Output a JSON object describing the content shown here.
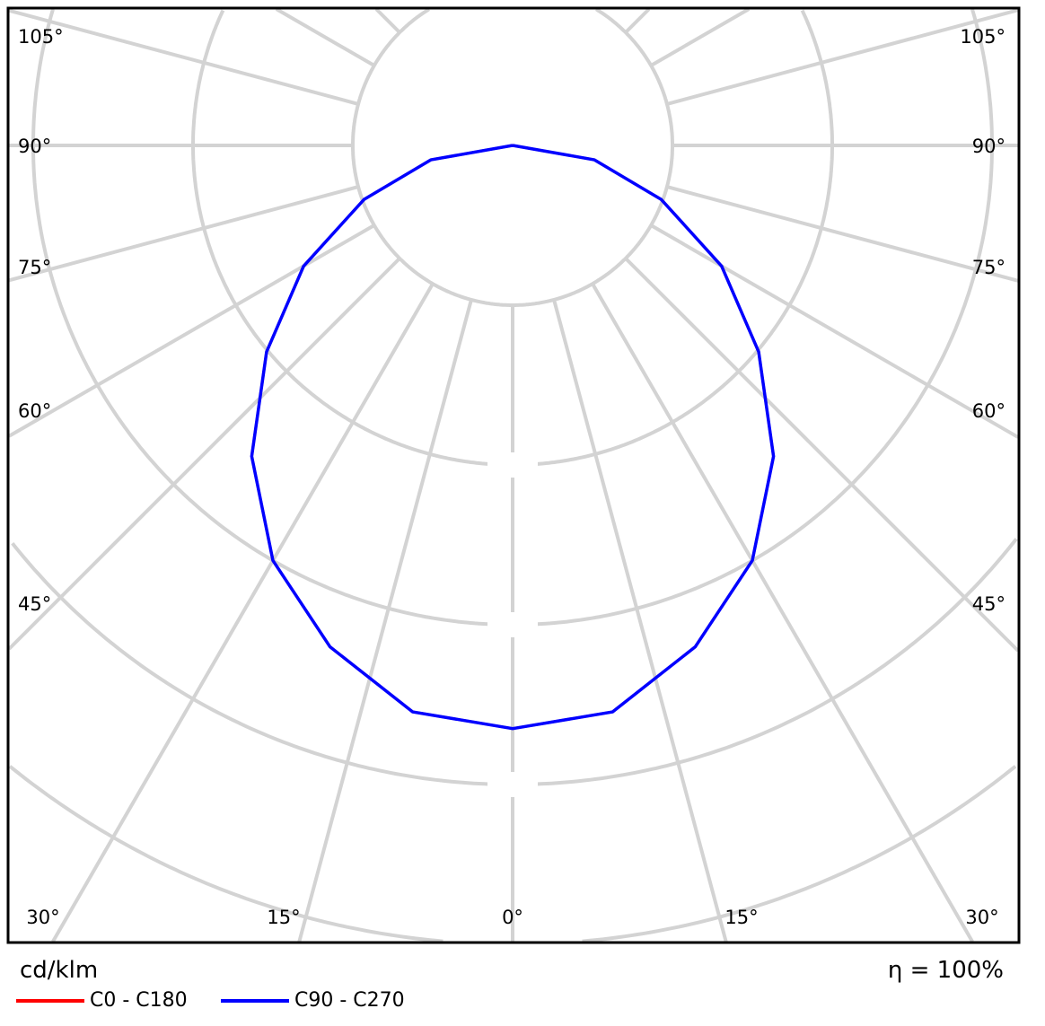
{
  "chart_data": {
    "type": "polar-line",
    "unit_label": "cd/klm",
    "efficiency_label": "η = 100%",
    "angle_tick_labels": {
      "left": [
        "105°",
        "90°",
        "75°",
        "60°",
        "45°"
      ],
      "right": [
        "105°",
        "90°",
        "75°",
        "60°",
        "45°"
      ],
      "bottom": [
        "30°",
        "15°",
        "0°",
        "15°",
        "30°"
      ]
    },
    "angles_deg": [
      0,
      10,
      20,
      30,
      40,
      50,
      60,
      70,
      80,
      90
    ],
    "series": [
      {
        "name": "C0 - C180",
        "color": "#ff0000",
        "values": [
          3.65,
          3.6,
          3.34,
          3.0,
          2.54,
          2.01,
          1.51,
          0.99,
          0.52,
          0
        ]
      },
      {
        "name": "C90 - C270",
        "color": "#0000ff",
        "values": [
          3.65,
          3.6,
          3.34,
          3.0,
          2.54,
          2.01,
          1.51,
          0.99,
          0.52,
          0
        ]
      }
    ],
    "grid": true,
    "legend_position": "bottom-left"
  }
}
